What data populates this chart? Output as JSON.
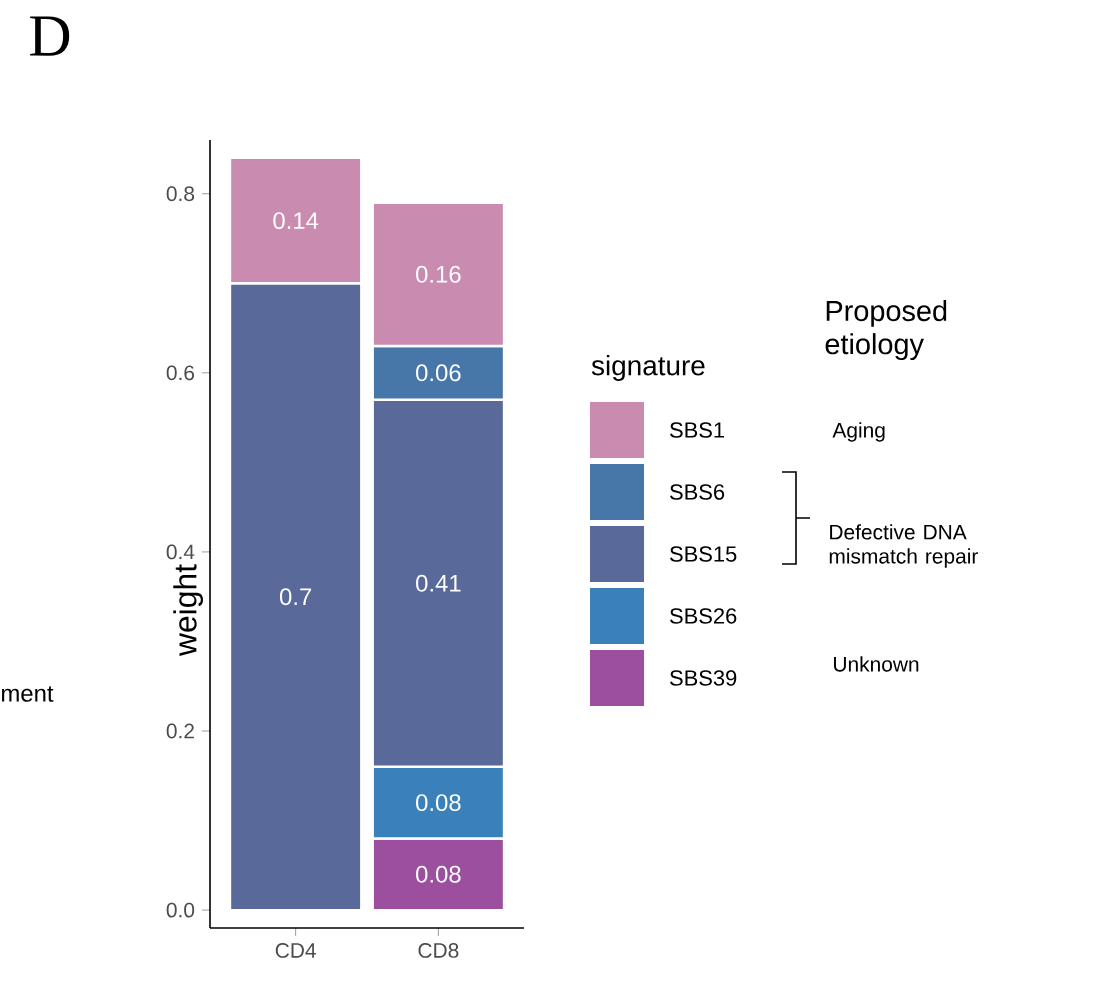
{
  "chart_data": {
    "type": "bar",
    "title": "D",
    "ylabel": "weight",
    "legend_title": "signature",
    "legend": "right",
    "stacked": true,
    "data_labels": true,
    "categories": [
      "CD4",
      "CD8"
    ],
    "series": [
      {
        "name": "SBS39",
        "color": "#9b4f9e",
        "values": [
          null,
          0.08
        ]
      },
      {
        "name": "SBS26",
        "color": "#3a80bb",
        "values": [
          null,
          0.08
        ]
      },
      {
        "name": "SBS15",
        "color": "#596a9a",
        "values": [
          0.7,
          0.41
        ]
      },
      {
        "name": "SBS6",
        "color": "#4776a8",
        "values": [
          null,
          0.06
        ]
      },
      {
        "name": "SBS1",
        "color": "#c98bb0",
        "values": [
          0.14,
          0.16
        ]
      }
    ],
    "ylim": [
      -0.02,
      0.86
    ],
    "yticks": [
      {
        "value": 0,
        "label": "0.0"
      },
      {
        "value": 0.2,
        "label": "0.2"
      },
      {
        "value": 0.4,
        "label": "0.4"
      },
      {
        "value": 0.6,
        "label": "0.6"
      },
      {
        "value": 0.8,
        "label": "0.8"
      }
    ],
    "annotations": [
      "ment",
      "Proposed etiology",
      "Aging",
      "Defective DNA mismatch repair",
      "Unknown"
    ]
  }
}
